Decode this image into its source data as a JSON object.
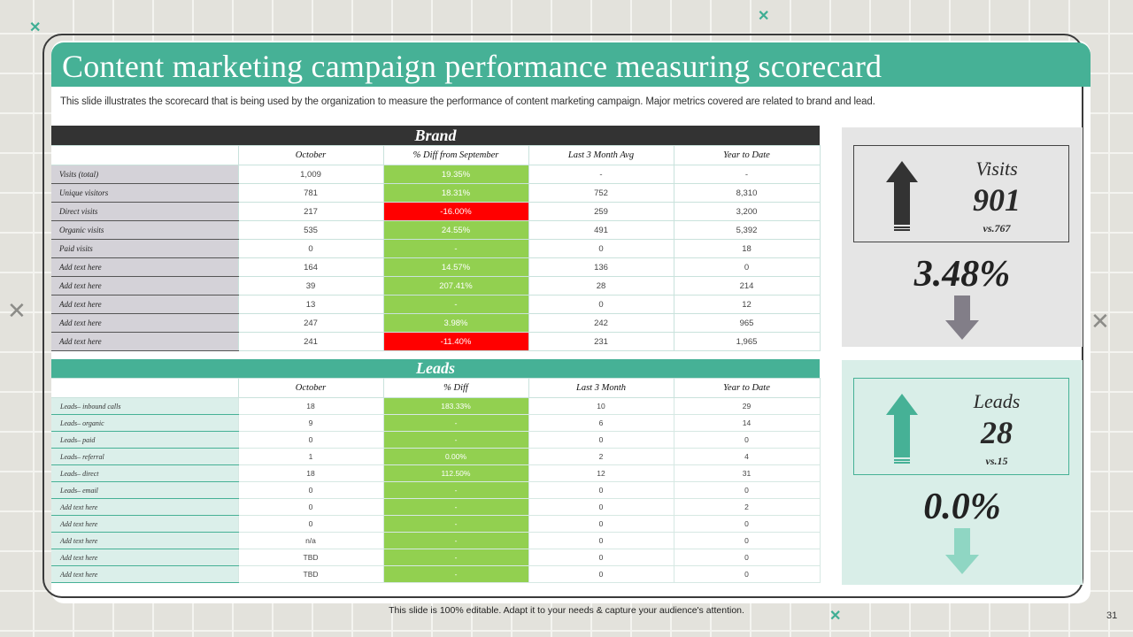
{
  "slide": {
    "title": "Content marketing campaign performance measuring scorecard",
    "subtitle": "This slide illustrates the scorecard that is being used by the organization to measure the performance of content marketing campaign. Major metrics covered are related to brand and lead.",
    "footer": "This slide is 100% editable.  Adapt it to your needs & capture your audience's attention.",
    "page_number": "31"
  },
  "colors": {
    "teal": "#46b196",
    "dark": "#333333",
    "positive": "#92d050",
    "negative": "#ff0000"
  },
  "brand": {
    "heading": "Brand",
    "columns": [
      "October",
      "% Diff from September",
      "Last 3 Month Avg",
      "Year to Date"
    ],
    "rows": [
      {
        "label": "Visits (total)",
        "october": "1,009",
        "diff": "19.35%",
        "status": "positive",
        "avg3": "-",
        "ytd": "-"
      },
      {
        "label": "Unique visitors",
        "october": "781",
        "diff": "18.31%",
        "status": "positive",
        "avg3": "752",
        "ytd": "8,310"
      },
      {
        "label": "Direct visits",
        "october": "217",
        "diff": "-16.00%",
        "status": "negative",
        "avg3": "259",
        "ytd": "3,200"
      },
      {
        "label": "Organic visits",
        "october": "535",
        "diff": "24.55%",
        "status": "positive",
        "avg3": "491",
        "ytd": "5,392"
      },
      {
        "label": "Paid visits",
        "october": "0",
        "diff": "-",
        "status": "positive",
        "avg3": "0",
        "ytd": "18"
      },
      {
        "label": "Add  text here",
        "october": "164",
        "diff": "14.57%",
        "status": "positive",
        "avg3": "136",
        "ytd": "0"
      },
      {
        "label": "Add  text here",
        "october": "39",
        "diff": "207.41%",
        "status": "positive",
        "avg3": "28",
        "ytd": "214"
      },
      {
        "label": "Add  text here",
        "october": "13",
        "diff": "-",
        "status": "positive",
        "avg3": "0",
        "ytd": "12"
      },
      {
        "label": "Add  text here",
        "october": "247",
        "diff": "3.98%",
        "status": "positive",
        "avg3": "242",
        "ytd": "965"
      },
      {
        "label": "Add  text here",
        "october": "241",
        "diff": "-11.40%",
        "status": "negative",
        "avg3": "231",
        "ytd": "1,965"
      }
    ]
  },
  "leads": {
    "heading": "Leads",
    "columns": [
      "October",
      "% Diff",
      "Last 3 Month",
      "Year to Date"
    ],
    "rows": [
      {
        "label": "Leads– inbound calls",
        "october": "18",
        "diff": "183.33%",
        "last3": "10",
        "ytd": "29"
      },
      {
        "label": "Leads– organic",
        "october": "9",
        "diff": "-",
        "last3": "6",
        "ytd": "14"
      },
      {
        "label": "Leads– paid",
        "october": "0",
        "diff": "-",
        "last3": "0",
        "ytd": "0"
      },
      {
        "label": "Leads– referral",
        "october": "1",
        "diff": "0.00%",
        "last3": "2",
        "ytd": "4"
      },
      {
        "label": "Leads– direct",
        "october": "18",
        "diff": "112.50%",
        "last3": "12",
        "ytd": "31"
      },
      {
        "label": "Leads– email",
        "october": "0",
        "diff": "-",
        "last3": "0",
        "ytd": "0"
      },
      {
        "label": "Add text here",
        "october": "0",
        "diff": "-",
        "last3": "0",
        "ytd": "2"
      },
      {
        "label": "Add text here",
        "october": "0",
        "diff": "-",
        "last3": "0",
        "ytd": "0"
      },
      {
        "label": "Add text here",
        "october": "n/a",
        "diff": "-",
        "last3": "0",
        "ytd": "0"
      },
      {
        "label": "Add text here",
        "october": "TBD",
        "diff": "-",
        "last3": "0",
        "ytd": "0"
      },
      {
        "label": "Add text here",
        "october": "TBD",
        "diff": "-",
        "last3": "0",
        "ytd": "0"
      }
    ]
  },
  "kpis": {
    "visits": {
      "name": "Visits",
      "value": "901",
      "comparison": "vs.767",
      "change": "3.48%",
      "trend_icon": "down-arrow-icon"
    },
    "leads": {
      "name": "Leads",
      "value": "28",
      "comparison": "vs.15",
      "change": "0.0%",
      "trend_icon": "down-arrow-icon"
    }
  }
}
